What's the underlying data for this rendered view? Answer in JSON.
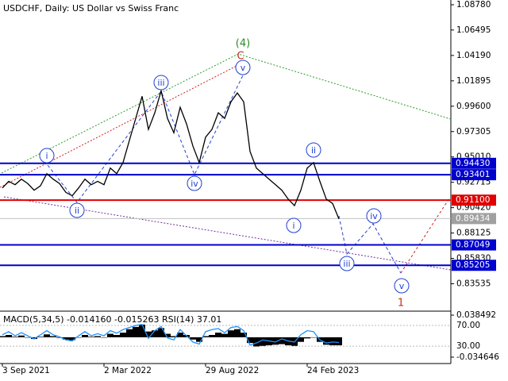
{
  "chart_data": {
    "type": "line",
    "title": "USDCHF, Daily:  US Dollar vs Swiss Franc",
    "values": [
      0.922,
      0.928,
      0.925,
      0.93,
      0.926,
      0.92,
      0.924,
      0.935,
      0.93,
      0.926,
      0.918,
      0.915,
      0.922,
      0.93,
      0.925,
      0.928,
      0.925,
      0.94,
      0.935,
      0.945,
      0.965,
      0.985,
      1.005,
      0.975,
      0.99,
      1.01,
      0.985,
      0.972,
      0.995,
      0.98,
      0.96,
      0.945,
      0.968,
      0.975,
      0.99,
      0.985,
      1.0,
      1.008,
      1.0,
      0.955,
      0.94,
      0.935,
      0.93,
      0.925,
      0.92,
      0.912,
      0.906,
      0.92,
      0.94,
      0.945,
      0.928,
      0.912,
      0.908,
      0.894
    ],
    "color": "#000000",
    "xlim": [
      0,
      70
    ],
    "xticks": [
      {
        "value": 0,
        "label": "3 Sep 2021"
      },
      {
        "value": 16,
        "label": "2 Mar 2022"
      },
      {
        "value": 32,
        "label": "29 Aug 2022"
      },
      {
        "value": 48,
        "label": "24 Feb 2023"
      }
    ],
    "ylim": [
      0.812,
      1.0921
    ],
    "yticks": [
      {
        "value": 1.0878,
        "label": "1.08780"
      },
      {
        "value": 1.06495,
        "label": "1.06495"
      },
      {
        "value": 1.0419,
        "label": "1.04190"
      },
      {
        "value": 1.01895,
        "label": "1.01895"
      },
      {
        "value": 0.996,
        "label": "0.99600"
      },
      {
        "value": 0.97305,
        "label": "0.97305"
      },
      {
        "value": 0.9501,
        "label": "0.95010"
      },
      {
        "value": 0.92715,
        "label": "0.92715"
      },
      {
        "value": 0.9042,
        "label": "0.90420"
      },
      {
        "value": 0.88125,
        "label": "0.88125"
      },
      {
        "value": 0.8583,
        "label": "0.85830"
      },
      {
        "value": 0.83535,
        "label": "0.83535"
      }
    ],
    "levels": [
      {
        "value": 0.9443,
        "label": "0.94430",
        "color": "#0000cc"
      },
      {
        "value": 0.93401,
        "label": "0.93401",
        "color": "#0000cc"
      },
      {
        "value": 0.911,
        "label": "0.91100",
        "color": "#e00000"
      },
      {
        "value": 0.89434,
        "label": "0.89434",
        "color": "#a0a0a0"
      },
      {
        "value": 0.87049,
        "label": "0.87049",
        "color": "#0000cc"
      },
      {
        "value": 0.85205,
        "label": "0.85205",
        "color": "#0000cc"
      }
    ],
    "annotations": [
      "(4)",
      "C",
      "v",
      "iii",
      "i",
      "ii",
      "iv",
      "ii",
      "i",
      "iii",
      "iv",
      "v",
      "1"
    ],
    "indicator": {
      "title": "MACD(5,34,5) -0.014160 -0.015263 RSI(14) 37.01",
      "macd": [
        0.002,
        0.004,
        0.001,
        0.003,
        0.0,
        -0.003,
        0.001,
        0.005,
        0.002,
        -0.001,
        -0.004,
        -0.005,
        0.0,
        0.004,
        0.001,
        0.002,
        0.0,
        0.006,
        0.004,
        0.008,
        0.014,
        0.018,
        0.022,
        0.01,
        0.012,
        0.016,
        0.006,
        0.002,
        0.008,
        0.004,
        -0.004,
        -0.008,
        0.002,
        0.004,
        0.008,
        0.006,
        0.012,
        0.014,
        0.008,
        -0.01,
        -0.016,
        -0.015,
        -0.014,
        -0.013,
        -0.012,
        -0.014,
        -0.015,
        -0.008,
        -0.002,
        0.0,
        -0.008,
        -0.013,
        -0.014,
        -0.014
      ],
      "rsi": [
        52,
        58,
        50,
        56,
        50,
        44,
        52,
        60,
        52,
        48,
        42,
        40,
        50,
        58,
        50,
        54,
        50,
        60,
        55,
        62,
        66,
        70,
        72,
        45,
        60,
        68,
        46,
        42,
        62,
        50,
        38,
        34,
        58,
        62,
        64,
        56,
        66,
        68,
        60,
        32,
        36,
        42,
        40,
        38,
        44,
        40,
        38,
        52,
        60,
        58,
        42,
        36,
        38,
        37
      ],
      "macd_color": "#000000",
      "rsi_color": "#1e90ff",
      "ylim": [
        -0.0416,
        0.0413
      ],
      "yticks": [
        0.038492,
        -0.034646
      ],
      "rsi_ylim": [
        1,
        93
      ],
      "rsi_yticks": [
        {
          "value": 70,
          "label": "70.00"
        },
        {
          "value": 30,
          "label": "30.00"
        }
      ]
    }
  }
}
